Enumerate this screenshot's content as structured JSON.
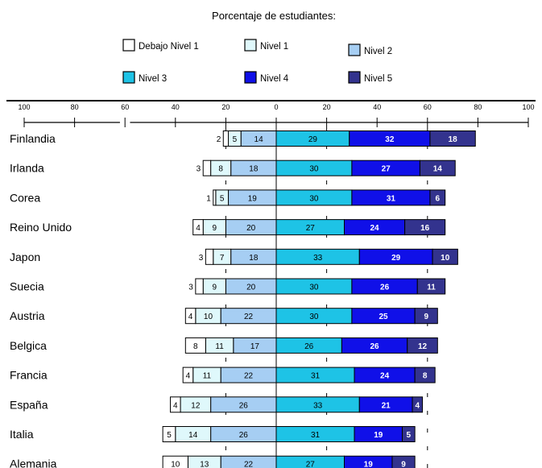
{
  "chart_data": {
    "type": "bar",
    "title": "Porcentaje de estudiantes:",
    "legend": {
      "placement": "top",
      "items": [
        {
          "key": "debajo",
          "label": "Debajo  Nivel 1",
          "color": "#ffffff"
        },
        {
          "key": "n1",
          "label": "Nivel 1",
          "color": "#dff8fb"
        },
        {
          "key": "n2",
          "label": "Nivel 2",
          "color": "#a6cef3"
        },
        {
          "key": "n3",
          "label": "Nivel 3",
          "color": "#1ec3e6"
        },
        {
          "key": "n4",
          "label": "Nivel 4",
          "color": "#1010e8"
        },
        {
          "key": "n5",
          "label": "Nivel  5",
          "color": "#33338e"
        }
      ]
    },
    "axis": {
      "range": [
        -100,
        100
      ],
      "tick_values": [
        -100,
        -80,
        -60,
        -40,
        -20,
        0,
        20,
        40,
        60,
        80,
        100
      ],
      "tick_labels": [
        "100",
        "80",
        "60",
        "40",
        "20",
        "0",
        "20",
        "40",
        "60",
        "80",
        "100"
      ]
    },
    "categories": [
      "Finlandia",
      "Irlanda",
      "Corea",
      "Reino Unido",
      "Japon",
      "Suecia",
      "Austria",
      "Belgica",
      "Francia",
      "España",
      "Italia",
      "Alemania"
    ],
    "series": [
      {
        "name": "Debajo  Nivel 1",
        "values": [
          2,
          3,
          1,
          4,
          3,
          3,
          4,
          8,
          4,
          4,
          5,
          10
        ]
      },
      {
        "name": "Nivel 1",
        "values": [
          5,
          8,
          5,
          9,
          7,
          9,
          10,
          11,
          11,
          12,
          14,
          13
        ]
      },
      {
        "name": "Nivel 2",
        "values": [
          14,
          18,
          19,
          20,
          18,
          20,
          22,
          17,
          22,
          26,
          26,
          22
        ]
      },
      {
        "name": "Nivel 3",
        "values": [
          29,
          30,
          30,
          27,
          33,
          30,
          30,
          26,
          31,
          33,
          31,
          27
        ]
      },
      {
        "name": "Nivel 4",
        "values": [
          32,
          27,
          31,
          24,
          29,
          26,
          25,
          26,
          24,
          21,
          19,
          19
        ]
      },
      {
        "name": "Nivel  5",
        "values": [
          18,
          14,
          6,
          16,
          10,
          11,
          9,
          12,
          8,
          4,
          5,
          9
        ]
      }
    ],
    "data_labels": {
      "Debajo  Nivel 1": [
        "2",
        "3",
        "1",
        "4",
        "3",
        "3",
        "4",
        "8",
        "4",
        "4",
        "5",
        "10"
      ],
      "Nivel 1": [
        "5",
        "8",
        "5",
        "9",
        "7",
        "9",
        "10",
        "11",
        "11",
        "12",
        "14",
        "13"
      ],
      "Nivel 2": [
        "14",
        "18",
        "19",
        "20",
        "18",
        "20",
        "22",
        "17",
        "22",
        "26",
        "26",
        "22"
      ],
      "Nivel 3": [
        "29",
        "30",
        "30",
        "27",
        "33",
        "30",
        "30",
        "26",
        "31",
        "33",
        "31",
        "27"
      ],
      "Nivel 4": [
        "32",
        "27",
        "31",
        "24",
        "29",
        "26",
        "25",
        "26",
        "24",
        "21",
        "19",
        "19"
      ],
      "Nivel  5": [
        "18",
        "14",
        "6",
        "16",
        "10",
        "11",
        "9",
        "12",
        "8",
        "4",
        "5",
        "9"
      ]
    },
    "stacking": "diverging: below-level-2 segments to the left of zero, level 3+ to the right",
    "grid": false
  }
}
